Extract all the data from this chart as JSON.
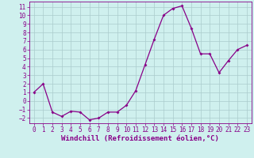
{
  "x": [
    0,
    1,
    2,
    3,
    4,
    5,
    6,
    7,
    8,
    9,
    10,
    11,
    12,
    13,
    14,
    15,
    16,
    17,
    18,
    19,
    20,
    21,
    22,
    23
  ],
  "y": [
    1,
    2,
    -1.3,
    -1.8,
    -1.2,
    -1.3,
    -2.2,
    -2.0,
    -1.3,
    -1.3,
    -0.5,
    1.2,
    4.2,
    7.2,
    10.0,
    10.8,
    11.1,
    8.5,
    5.5,
    5.5,
    3.3,
    4.7,
    6.0,
    6.5
  ],
  "line_color": "#880088",
  "marker_color": "#880088",
  "bg_color": "#cff0ee",
  "grid_color": "#aacccc",
  "xlabel": "Windchill (Refroidissement éolien,°C)",
  "xlim": [
    -0.5,
    23.5
  ],
  "ylim": [
    -2.6,
    11.6
  ],
  "yticks": [
    -2,
    -1,
    0,
    1,
    2,
    3,
    4,
    5,
    6,
    7,
    8,
    9,
    10,
    11
  ],
  "xticks": [
    0,
    1,
    2,
    3,
    4,
    5,
    6,
    7,
    8,
    9,
    10,
    11,
    12,
    13,
    14,
    15,
    16,
    17,
    18,
    19,
    20,
    21,
    22,
    23
  ],
  "tick_fontsize": 5.5,
  "label_fontsize": 6.5,
  "linewidth": 0.9,
  "markersize": 2.0
}
